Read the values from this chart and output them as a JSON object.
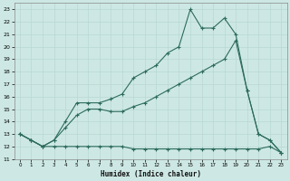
{
  "xlabel": "Humidex (Indice chaleur)",
  "bg_color": "#cde8e4",
  "line_color": "#2d6b5e",
  "grid_color": "#b8d8d4",
  "ylim": [
    11.0,
    23.5
  ],
  "xlim": [
    -0.5,
    23.5
  ],
  "yticks": [
    11,
    12,
    13,
    14,
    15,
    16,
    17,
    18,
    19,
    20,
    21,
    22,
    23
  ],
  "xticks": [
    0,
    1,
    2,
    3,
    4,
    5,
    6,
    7,
    8,
    9,
    10,
    11,
    12,
    13,
    14,
    15,
    16,
    17,
    18,
    19,
    20,
    21,
    22,
    23
  ],
  "flat_x": [
    0,
    1,
    2,
    3,
    4,
    5,
    6,
    7,
    8,
    9,
    10,
    11,
    12,
    13,
    14,
    15,
    16,
    17,
    18,
    19,
    20,
    21,
    22,
    23
  ],
  "flat_y": [
    13,
    12.5,
    12,
    12,
    12,
    12,
    12,
    12,
    12,
    12,
    11.8,
    11.8,
    11.8,
    11.8,
    11.8,
    11.8,
    11.8,
    11.8,
    11.8,
    11.8,
    11.8,
    11.8,
    12,
    11.5
  ],
  "diag_x": [
    0,
    1,
    2,
    3,
    4,
    5,
    6,
    7,
    8,
    9,
    10,
    11,
    12,
    13,
    14,
    15,
    16,
    17,
    18,
    19,
    20,
    21,
    22,
    23
  ],
  "diag_y": [
    13,
    12.5,
    12,
    12.5,
    13.5,
    14.5,
    15,
    15,
    14.8,
    14.8,
    15.2,
    15.5,
    16,
    16.5,
    17,
    17.5,
    18,
    18.5,
    19,
    20.5,
    16.5,
    13,
    12.5,
    11.5
  ],
  "peak_x": [
    0,
    1,
    2,
    3,
    4,
    5,
    6,
    7,
    8,
    9,
    10,
    11,
    12,
    13,
    14,
    15,
    16,
    17,
    18,
    19,
    20,
    21,
    22,
    23
  ],
  "peak_y": [
    13,
    12.5,
    12,
    12.5,
    14,
    15.5,
    15.5,
    15.5,
    15.8,
    16.2,
    17.5,
    18,
    18.5,
    19.5,
    20,
    23,
    21.5,
    21.5,
    22.3,
    21,
    16.5,
    13,
    12.5,
    11.5
  ]
}
